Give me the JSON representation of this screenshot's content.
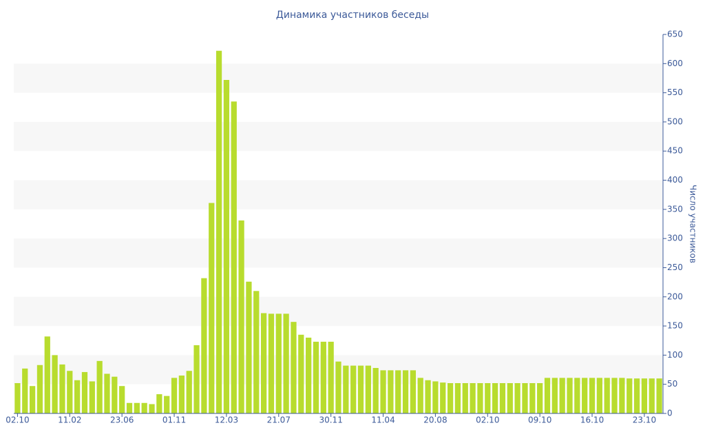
{
  "chart_data": {
    "type": "bar",
    "title": "Динамика участников беседы",
    "y_label": "Число участников",
    "categories": [
      "02.10",
      null,
      null,
      null,
      null,
      null,
      null,
      "11.02",
      null,
      null,
      null,
      null,
      null,
      null,
      "23.06",
      null,
      null,
      null,
      null,
      null,
      null,
      "01.11",
      null,
      null,
      null,
      null,
      null,
      null,
      "12.03",
      null,
      null,
      null,
      null,
      null,
      null,
      "21.07",
      null,
      null,
      null,
      null,
      null,
      null,
      "30.11",
      null,
      null,
      null,
      null,
      null,
      null,
      "11.04",
      null,
      null,
      null,
      null,
      null,
      null,
      "20.08",
      null,
      null,
      null,
      null,
      null,
      null,
      "02.10",
      null,
      null,
      null,
      null,
      null,
      null,
      "09.10",
      null,
      null,
      null,
      null,
      null,
      null,
      "16.10",
      null,
      null,
      null,
      null,
      null,
      null,
      "23.10",
      null,
      null
    ],
    "values": [
      52,
      77,
      47,
      83,
      132,
      100,
      84,
      73,
      57,
      71,
      55,
      90,
      68,
      63,
      47,
      18,
      18,
      18,
      16,
      33,
      30,
      61,
      65,
      73,
      117,
      232,
      361,
      622,
      572,
      535,
      331,
      226,
      210,
      172,
      171,
      171,
      171,
      157,
      135,
      130,
      123,
      123,
      123,
      89,
      82,
      82,
      82,
      82,
      78,
      74,
      74,
      74,
      74,
      74,
      61,
      57,
      55,
      53,
      52,
      52,
      52,
      52,
      52,
      52,
      52,
      52,
      52,
      52,
      52,
      52,
      52,
      61,
      61,
      61,
      61,
      61,
      61,
      61,
      61,
      61,
      61,
      61,
      60,
      60,
      60,
      60,
      60
    ],
    "color": "#b8dc2e",
    "ylim": [
      0,
      650
    ],
    "yticks": [
      0,
      50,
      100,
      150,
      200,
      250,
      300,
      350,
      400,
      450,
      500,
      550,
      600,
      650
    ],
    "y_axis_side": "right",
    "grid": "bands",
    "band_color": "#f7f7f7"
  }
}
